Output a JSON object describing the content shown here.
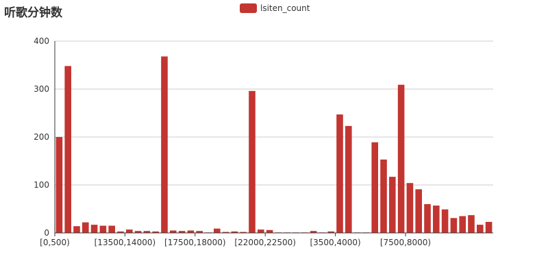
{
  "chart_data": {
    "type": "bar",
    "title": "听歌分钟数",
    "legend_position": "top-center",
    "grid": true,
    "bar_color": "#c23531",
    "series": [
      {
        "name": "lsiten_count",
        "values": [
          200,
          348,
          14,
          22,
          17,
          15,
          15,
          3,
          7,
          4,
          4,
          3,
          368,
          5,
          4,
          5,
          4,
          1,
          9,
          2,
          3,
          2,
          296,
          7,
          6,
          1,
          1,
          1,
          1,
          4,
          1,
          3,
          247,
          223,
          1,
          1,
          189,
          153,
          117,
          309,
          104,
          91,
          60,
          57,
          49,
          31,
          35,
          37,
          17,
          23
        ]
      }
    ],
    "x_tick_labels": [
      "[0,500)",
      "[13500,14000)",
      "[17500,18000)",
      "[22000,22500)",
      "[3500,4000)",
      "[7500,8000)"
    ],
    "ylim": [
      0,
      400
    ],
    "y_ticks": [
      0,
      100,
      200,
      300,
      400
    ]
  }
}
